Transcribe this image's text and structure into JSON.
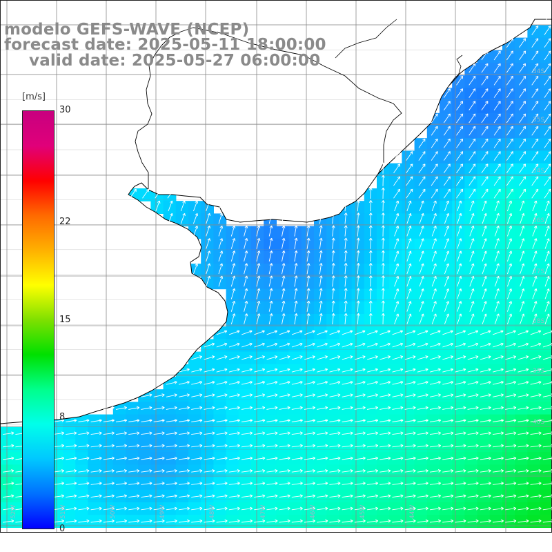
{
  "title": {
    "line1": "modelo GEFS-WAVE (NCEP)",
    "line2": "forecast date: 2025-05-11 18:00:00",
    "line3": "valid date: 2025-05-27 06:00:00"
  },
  "colorbar": {
    "unit": "[m/s]",
    "min": 0,
    "max": 30,
    "ticks": [
      {
        "value": 30,
        "label": "30"
      },
      {
        "value": 22,
        "label": "22"
      },
      {
        "value": 15,
        "label": "15"
      },
      {
        "value": 8,
        "label": "8"
      },
      {
        "value": 0,
        "label": "0"
      }
    ],
    "colors": [
      "#0000ff",
      "#0070ff",
      "#00c8ff",
      "#00ffea",
      "#00ff8c",
      "#00e000",
      "#7fe000",
      "#ffff00",
      "#ffb000",
      "#ff6a00",
      "#ff0000",
      "#e0007a",
      "#c8007f"
    ]
  },
  "map": {
    "ocean_base_color": "#1ed0ff",
    "land_color": "#ffffff",
    "grid_color": "#8a8a8a",
    "coast_color": "#000000",
    "arrow_color": "#ffffff",
    "lat_labels": [
      "34S",
      "35S",
      "34S",
      "36S",
      "37S",
      "38S",
      "39S",
      "40S"
    ],
    "lon_labels": [
      "52W",
      "51W",
      "50W",
      "49W",
      "48W",
      "47W",
      "46W",
      "45W",
      "44W"
    ]
  }
}
